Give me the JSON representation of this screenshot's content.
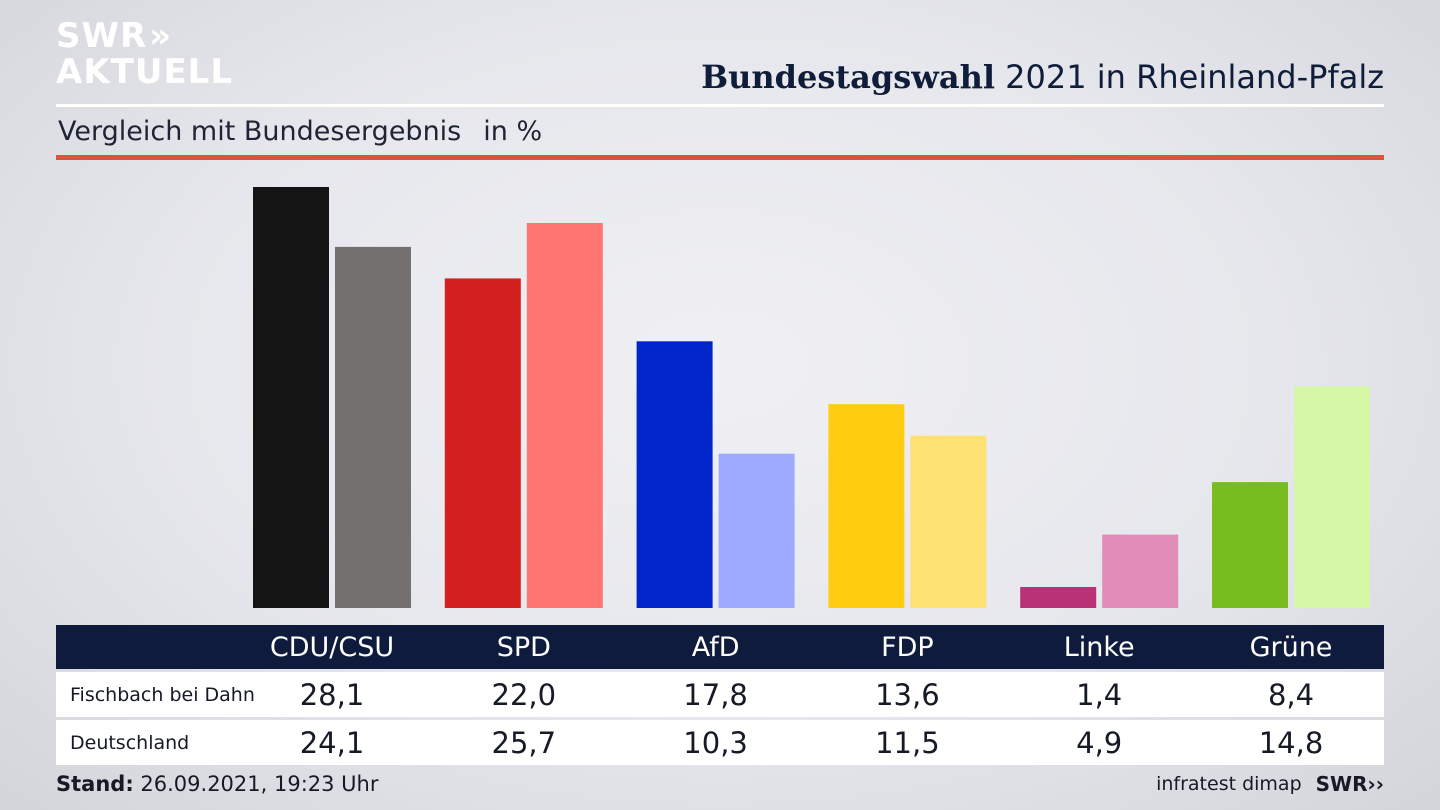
{
  "header": {
    "logo_line1": "SWR",
    "logo_line2": "AKTUELL",
    "title_bold": "Bundestagswahl",
    "title_rest": " 2021 in Rheinland-Pfalz",
    "subtitle": "Vergleich mit Bundesergebnis",
    "unit": "in %"
  },
  "chart_data": {
    "type": "bar",
    "categories": [
      "CDU/CSU",
      "SPD",
      "AfD",
      "FDP",
      "Linke",
      "Grüne"
    ],
    "series": [
      {
        "name": "Fischbach bei Dahn",
        "values": [
          28.1,
          22.0,
          17.8,
          13.6,
          1.4,
          8.4
        ],
        "colors": [
          "#141414",
          "#d42020",
          "#0025c8",
          "#ffcc0f",
          "#b93176",
          "#78bd20"
        ]
      },
      {
        "name": "Deutschland",
        "values": [
          24.1,
          25.7,
          10.3,
          11.5,
          4.9,
          14.8
        ],
        "colors": [
          "#73706f",
          "#ff7670",
          "#9daaff",
          "#ffe072",
          "#e08bb8",
          "#d6f7a6"
        ]
      }
    ],
    "ylim": [
      0,
      28.1
    ],
    "grid": false
  },
  "table": {
    "headers": [
      "CDU/CSU",
      "SPD",
      "AfD",
      "FDP",
      "Linke",
      "Grüne"
    ],
    "rows": [
      {
        "label": "Fischbach bei Dahn",
        "values": [
          "28,1",
          "22,0",
          "17,8",
          "13,6",
          "1,4",
          "8,4"
        ]
      },
      {
        "label": "Deutschland",
        "values": [
          "24,1",
          "25,7",
          "10,3",
          "11,5",
          "4,9",
          "14,8"
        ]
      }
    ]
  },
  "footer": {
    "stand_label": "Stand:",
    "stand_value": " 26.09.2021, 19:23 Uhr",
    "source": "infratest dimap",
    "brand": "SWR"
  }
}
